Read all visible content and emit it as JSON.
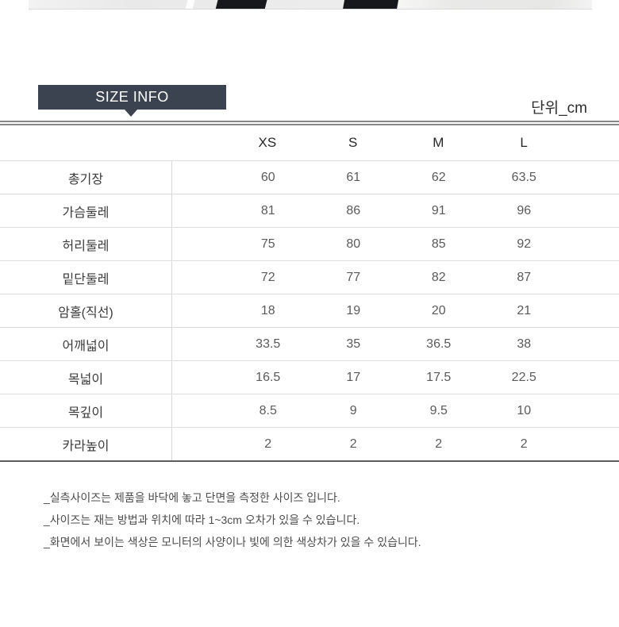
{
  "header": {
    "title": "SIZE INFO",
    "unit": "단위_cm"
  },
  "table": {
    "columns": [
      "XS",
      "S",
      "M",
      "L"
    ],
    "rows": [
      {
        "label": "총기장",
        "values": [
          "60",
          "61",
          "62",
          "63.5"
        ]
      },
      {
        "label": "가슴둘레",
        "values": [
          "81",
          "86",
          "91",
          "96"
        ]
      },
      {
        "label": "허리둘레",
        "values": [
          "75",
          "80",
          "85",
          "92"
        ]
      },
      {
        "label": "밑단둘레",
        "values": [
          "72",
          "77",
          "82",
          "87"
        ]
      },
      {
        "label": "암홀(직선)",
        "values": [
          "18",
          "19",
          "20",
          "21"
        ]
      },
      {
        "label": "어깨넓이",
        "values": [
          "33.5",
          "35",
          "36.5",
          "38"
        ]
      },
      {
        "label": "목넓이",
        "values": [
          "16.5",
          "17",
          "17.5",
          "22.5"
        ]
      },
      {
        "label": "목깊이",
        "values": [
          "8.5",
          "9",
          "9.5",
          "10"
        ]
      },
      {
        "label": "카라높이",
        "values": [
          "2",
          "2",
          "2",
          "2"
        ]
      }
    ]
  },
  "notes": [
    "_실측사이즈는 제품을 바닥에 놓고 단면을 측정한 사이즈 입니다.",
    "_사이즈는 재는 방법과 위치에 따라 1~3cm 오차가 있을 수 있습니다.",
    "_화면에서 보이는 색상은 모니터의 사양이나 빛에 의한 색상차가 있을 수 있습니다."
  ],
  "colors": {
    "badge_bg": "#3c4350",
    "double_rule": "#878787",
    "row_line": "#dcdcdc",
    "bottom_rule": "#5d5d5d"
  }
}
